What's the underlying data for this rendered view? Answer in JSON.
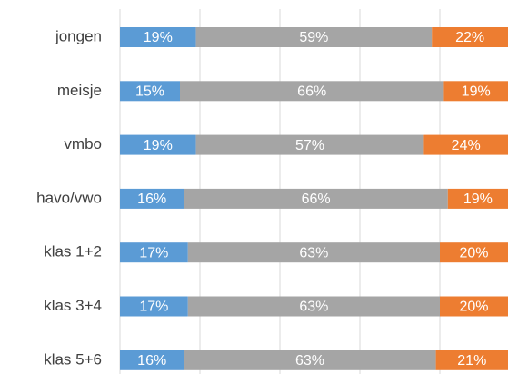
{
  "chart_data": {
    "type": "stacked-bar-horizontal",
    "categories": [
      "jongen",
      "meisje",
      "vmbo",
      "havo/vwo",
      "klas 1+2",
      "klas 3+4",
      "klas 5+6"
    ],
    "series": [
      {
        "color": "#5b9bd5",
        "values": [
          19,
          15,
          19,
          16,
          17,
          17,
          16
        ],
        "value_labels": [
          "19%",
          "15%",
          "19%",
          "16%",
          "17%",
          "17%",
          "16%"
        ]
      },
      {
        "color": "#a5a5a5",
        "values": [
          59,
          66,
          57,
          66,
          63,
          63,
          63
        ],
        "value_labels": [
          "59%",
          "66%",
          "57%",
          "66%",
          "63%",
          "63%",
          "63%"
        ]
      },
      {
        "color": "#ed7d31",
        "values": [
          22,
          19,
          24,
          19,
          20,
          20,
          21
        ],
        "value_labels": [
          "22%",
          "19%",
          "24%",
          "19%",
          "20%",
          "20%",
          "21%"
        ]
      }
    ],
    "xlim": [
      0,
      100
    ],
    "xticks": [
      0,
      20,
      40,
      60,
      80,
      100
    ],
    "grid": true
  }
}
